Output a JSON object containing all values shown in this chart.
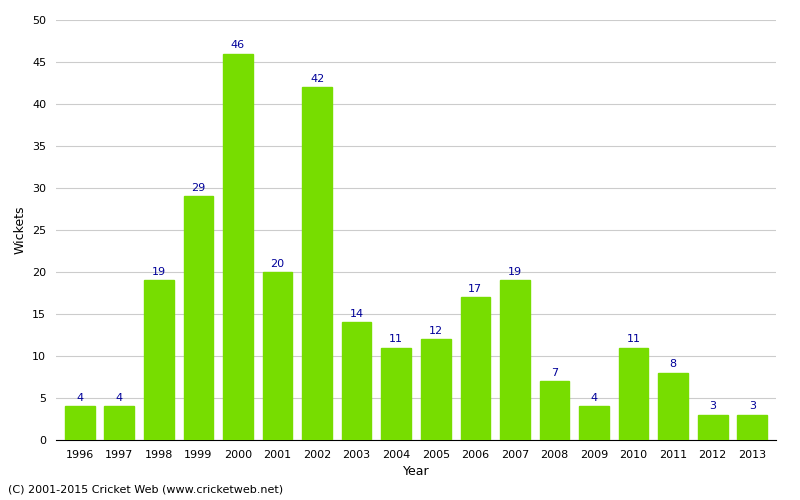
{
  "years": [
    1996,
    1997,
    1998,
    1999,
    2000,
    2001,
    2002,
    2003,
    2004,
    2005,
    2006,
    2007,
    2008,
    2009,
    2010,
    2011,
    2012,
    2013
  ],
  "wickets": [
    4,
    4,
    19,
    29,
    46,
    20,
    42,
    14,
    11,
    12,
    17,
    19,
    7,
    4,
    11,
    8,
    3,
    3
  ],
  "bar_color": "#77dd00",
  "label_color": "#000099",
  "background_color": "#ffffff",
  "grid_color": "#cccccc",
  "ylabel": "Wickets",
  "xlabel": "Year",
  "ylim": [
    0,
    50
  ],
  "yticks": [
    0,
    5,
    10,
    15,
    20,
    25,
    30,
    35,
    40,
    45,
    50
  ],
  "footer": "(C) 2001-2015 Cricket Web (www.cricketweb.net)",
  "label_fontsize": 8,
  "axis_label_fontsize": 9,
  "tick_fontsize": 8,
  "footer_fontsize": 8,
  "bar_width": 0.75
}
